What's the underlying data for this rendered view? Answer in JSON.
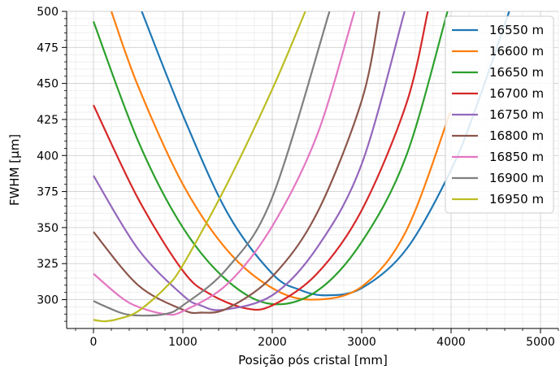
{
  "chart_data": {
    "type": "line",
    "xlabel": "Posição pós cristal [mm]",
    "ylabel": "FWHM [μm]",
    "xlim": [
      -300,
      5200
    ],
    "ylim": [
      280,
      500
    ],
    "xticks": [
      0,
      1000,
      2000,
      3000,
      4000,
      5000
    ],
    "yticks": [
      300,
      325,
      350,
      375,
      400,
      425,
      450,
      475,
      500
    ],
    "grid": true,
    "minor_grid": true,
    "legend_position": "top-right",
    "series": [
      {
        "name": "16550 m",
        "color": "#1f77b4",
        "x": [
          540,
          1000,
          1500,
          2000,
          2300,
          2600,
          3000,
          3500,
          4000,
          4300,
          4650
        ],
        "y": [
          500,
          428,
          360,
          318,
          307,
          303,
          308,
          335,
          390,
          437,
          500
        ]
      },
      {
        "name": "16600 m",
        "color": "#ff7f0e",
        "x": [
          200,
          500,
          1000,
          1500,
          2000,
          2450,
          3000,
          3500,
          3990
        ],
        "y": [
          500,
          448,
          380,
          334,
          308,
          300,
          309,
          348,
          430
        ]
      },
      {
        "name": "16650 m",
        "color": "#2ca02c",
        "x": [
          0,
          500,
          1000,
          1500,
          1990,
          2500,
          3000,
          3500,
          3960
        ],
        "y": [
          493,
          410,
          350,
          313,
          297,
          306,
          340,
          400,
          500
        ]
      },
      {
        "name": "16700 m",
        "color": "#d62728",
        "x": [
          0,
          500,
          1000,
          1300,
          1700,
          2000,
          2500,
          3000,
          3500,
          3740
        ],
        "y": [
          435,
          370,
          320,
          304,
          294,
          296,
          318,
          362,
          436,
          500
        ]
      },
      {
        "name": "16750 m",
        "color": "#9467bd",
        "x": [
          0,
          500,
          1000,
          1200,
          1450,
          2000,
          2500,
          3000,
          3480
        ],
        "y": [
          386,
          335,
          303,
          296,
          293,
          303,
          336,
          394,
          500
        ]
      },
      {
        "name": "16800 m",
        "color": "#8c564b",
        "x": [
          0,
          500,
          1000,
          1200,
          1500,
          2000,
          2500,
          3000,
          3200
        ],
        "y": [
          347,
          310,
          293,
          291,
          294,
          316,
          360,
          438,
          500
        ]
      },
      {
        "name": "16850 m",
        "color": "#e377c2",
        "x": [
          0,
          300,
          500,
          800,
          1000,
          1500,
          2000,
          2500,
          2920
        ],
        "y": [
          318,
          302,
          295,
          290,
          292,
          311,
          351,
          414,
          500
        ]
      },
      {
        "name": "16900 m",
        "color": "#7f7f7f",
        "x": [
          0,
          300,
          500,
          800,
          1000,
          1500,
          2000,
          2640
        ],
        "y": [
          299,
          291,
          289,
          290,
          296,
          322,
          371,
          500
        ]
      },
      {
        "name": "16950 m",
        "color": "#bcbd22",
        "x": [
          0,
          130,
          300,
          500,
          800,
          1000,
          1500,
          2000,
          2370
        ],
        "y": [
          286,
          285,
          287,
          292,
          308,
          324,
          381,
          446,
          500
        ]
      }
    ]
  }
}
